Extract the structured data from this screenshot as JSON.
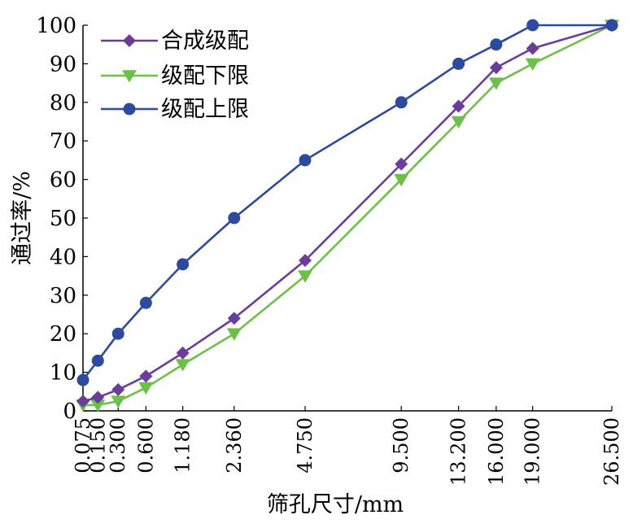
{
  "chart_data": {
    "type": "line",
    "title": "",
    "xlabel": "筛孔尺寸/mm",
    "ylabel": "通过率/%",
    "ylim": [
      0,
      100
    ],
    "yticks": [
      "0",
      "10",
      "20",
      "30",
      "40",
      "50",
      "60",
      "70",
      "80",
      "90",
      "100"
    ],
    "categories": [
      "0.075",
      "0.150",
      "0.300",
      "0.600",
      "1.180",
      "2.360",
      "4.750",
      "9.500",
      "13.200",
      "16.000",
      "19.000",
      "26.500"
    ],
    "x_scale": "power-0.45",
    "legend_position": "top-left",
    "grid": false,
    "series": [
      {
        "name": "合成级配",
        "marker": "diamond",
        "color": "#6a3d9a",
        "values": [
          2.5,
          3.5,
          5.5,
          9,
          15,
          24,
          39,
          64,
          79,
          89,
          94,
          100
        ]
      },
      {
        "name": "级配下限",
        "marker": "triangle-down",
        "color": "#6cc04a",
        "values": [
          1.5,
          1.5,
          2.5,
          6,
          12,
          20,
          35,
          60,
          75,
          85,
          90,
          100
        ]
      },
      {
        "name": "级配上限",
        "marker": "circle",
        "color": "#2c4a9e",
        "values": [
          8,
          13,
          20,
          28,
          38,
          50,
          65,
          80,
          90,
          95,
          100,
          100
        ]
      }
    ]
  }
}
